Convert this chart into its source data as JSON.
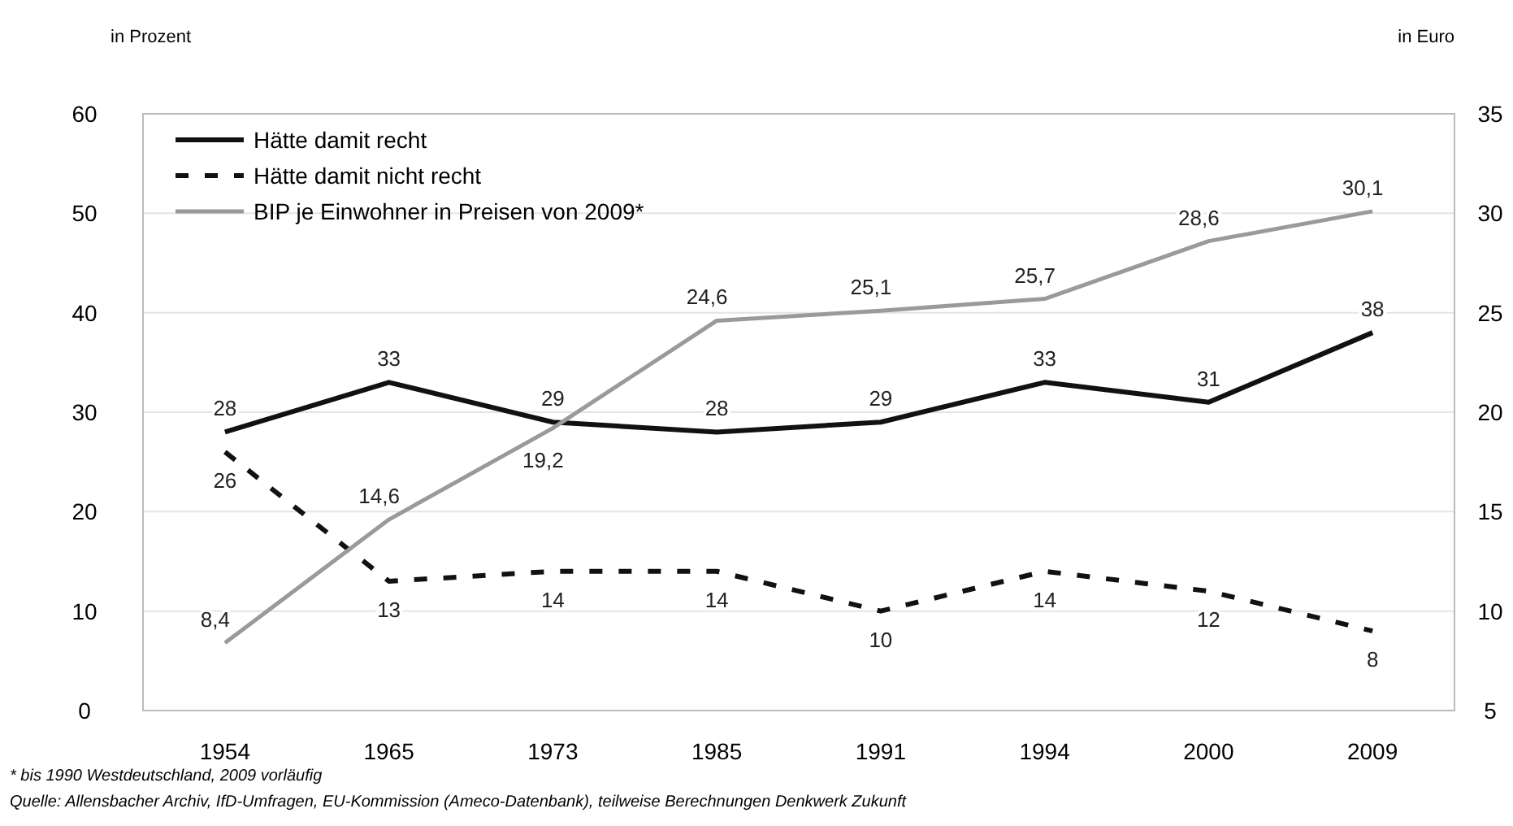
{
  "chart_data": {
    "type": "line",
    "ylabel": "in Prozent",
    "y2label": "in Euro",
    "categories": [
      "1954",
      "1965",
      "1973",
      "1985",
      "1991",
      "1994",
      "2000",
      "2009"
    ],
    "series": [
      {
        "name": "Hätte damit recht",
        "color": "#111111",
        "line_style": "solid",
        "values": [
          28,
          33,
          29,
          28,
          29,
          33,
          31,
          38
        ],
        "value_labels": [
          "28",
          "33",
          "29",
          "28",
          "29",
          "33",
          "31",
          "38"
        ]
      },
      {
        "name": "Hätte damit nicht recht",
        "color": "#111111",
        "line_style": "dashed",
        "values": [
          26,
          13,
          14,
          14,
          10,
          14,
          12,
          8
        ],
        "value_labels": [
          "26",
          "13",
          "14",
          "14",
          "10",
          "14",
          "12",
          "8"
        ]
      },
      {
        "name": "BIP je Einwohner in Preisen von 2009*",
        "color": "#9a9a9a",
        "line_style": "solid",
        "axis": "y2",
        "values": [
          8.4,
          14.6,
          19.2,
          24.6,
          25.1,
          25.7,
          28.6,
          30.1
        ],
        "value_labels": [
          "8,4",
          "14,6",
          "19,2",
          "24,6",
          "25,1",
          "25,7",
          "28,6",
          "30,1"
        ]
      }
    ],
    "ylim": [
      0,
      60
    ],
    "yticks": [
      0,
      10,
      20,
      30,
      40,
      50,
      60
    ],
    "y2lim": [
      5,
      35
    ],
    "y2ticks": [
      5,
      10,
      15,
      20,
      25,
      30,
      35
    ],
    "grid": "y",
    "legend": "top left",
    "marker": "none",
    "annotations": [
      "* bis 1990 Westdeutschland, 2009 vorläufig",
      "Quelle:  Allensbacher Archiv, IfD-Umfragen, EU-Kommission (Ameco-Datenbank), teilweise Berechnungen Denkwerk Zukunft"
    ]
  }
}
